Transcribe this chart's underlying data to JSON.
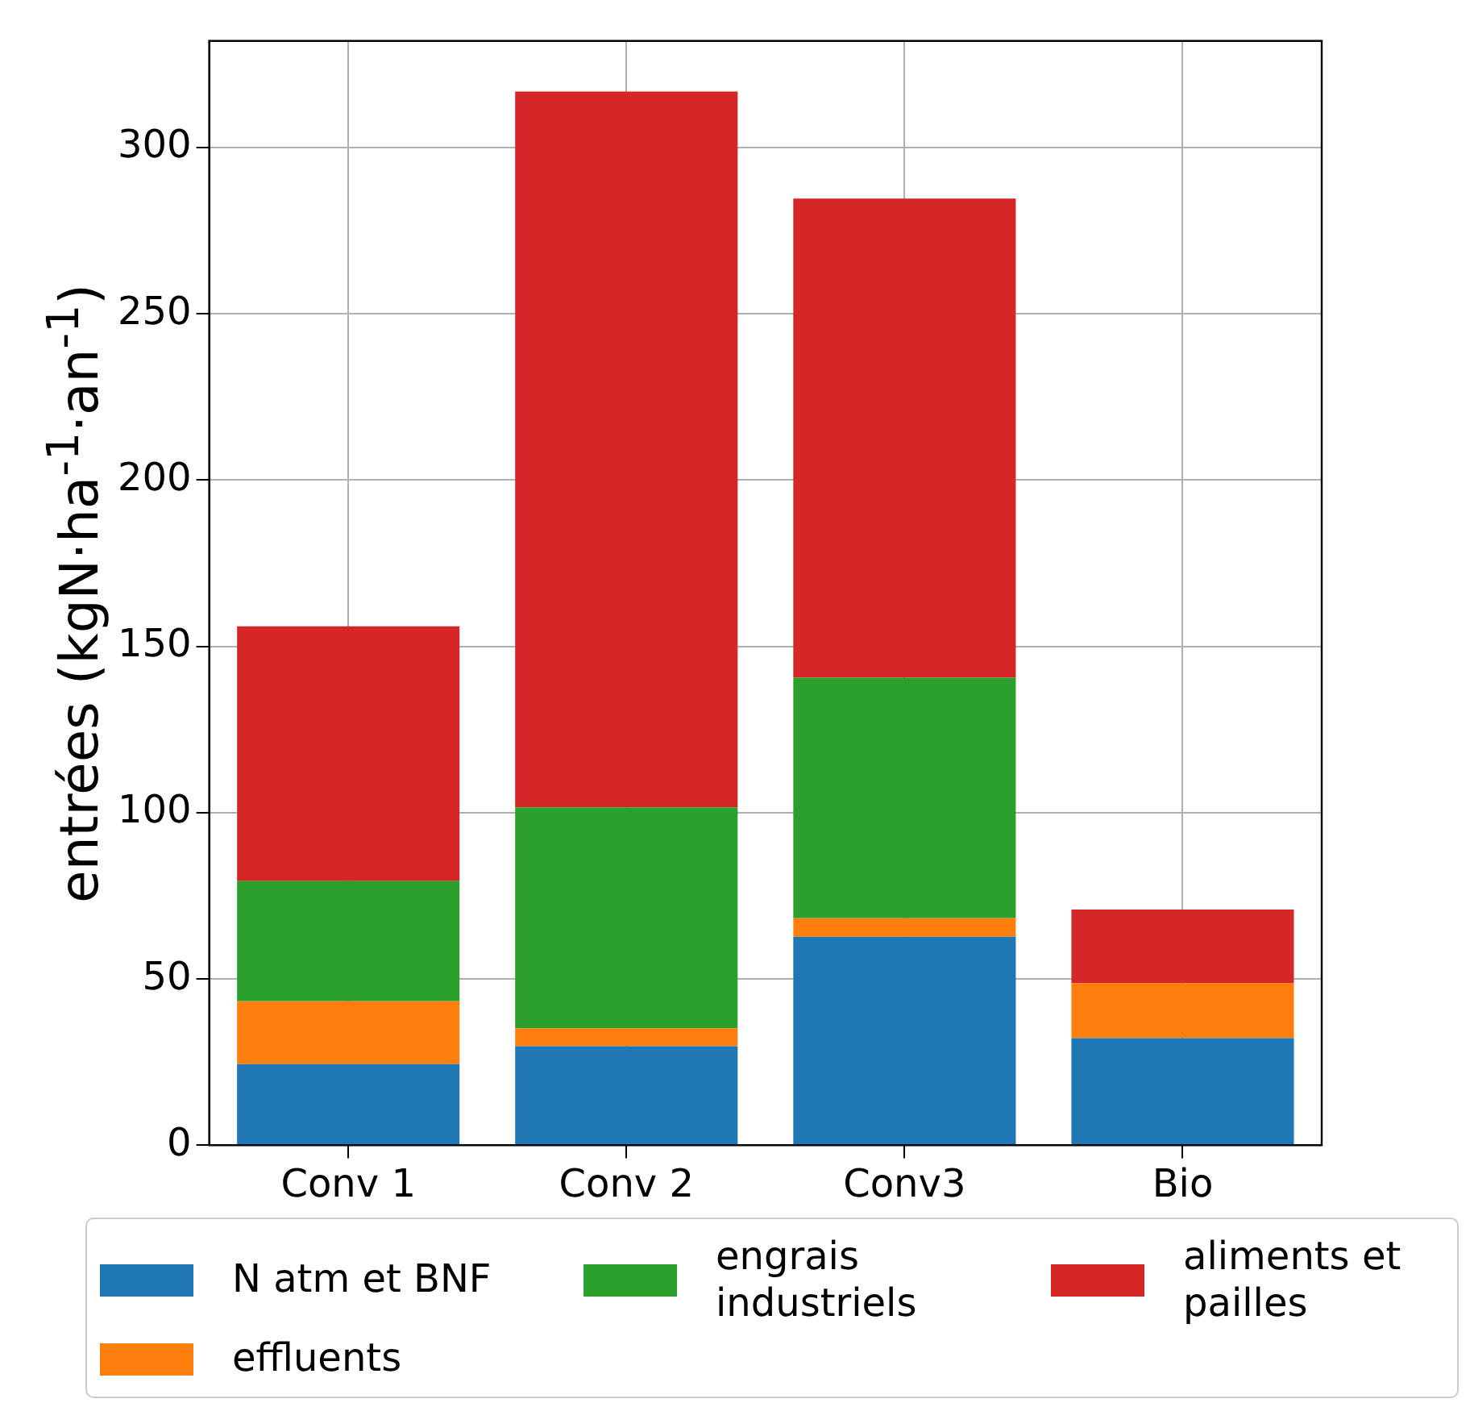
{
  "chart_data": {
    "type": "bar",
    "stacked": true,
    "ylabel": "entrées (kgN·ha$^{-1}$·an$^{-1}$)",
    "categories": [
      "Conv 1",
      "Conv 2",
      "Conv3",
      "Bio"
    ],
    "series": [
      {
        "name": "N atm et BNF",
        "color": "#1f77b4",
        "values": [
          24.4,
          29.8,
          62.7,
          32.2
        ]
      },
      {
        "name": "effluents",
        "color": "#ff7f0e",
        "values": [
          18.9,
          5.4,
          5.6,
          16.5
        ]
      },
      {
        "name": "engrais industriels",
        "color": "#2ca02c",
        "values": [
          36.1,
          66.4,
          72.3,
          0
        ]
      },
      {
        "name": "aliments et pailles",
        "color": "#d62728",
        "values": [
          76.6,
          215.2,
          144.0,
          22.2
        ]
      }
    ],
    "ylim": [
      0,
      332
    ],
    "yticks": [
      0,
      50,
      100,
      150,
      200,
      250,
      300
    ],
    "grid": true,
    "legend": "bottom"
  }
}
